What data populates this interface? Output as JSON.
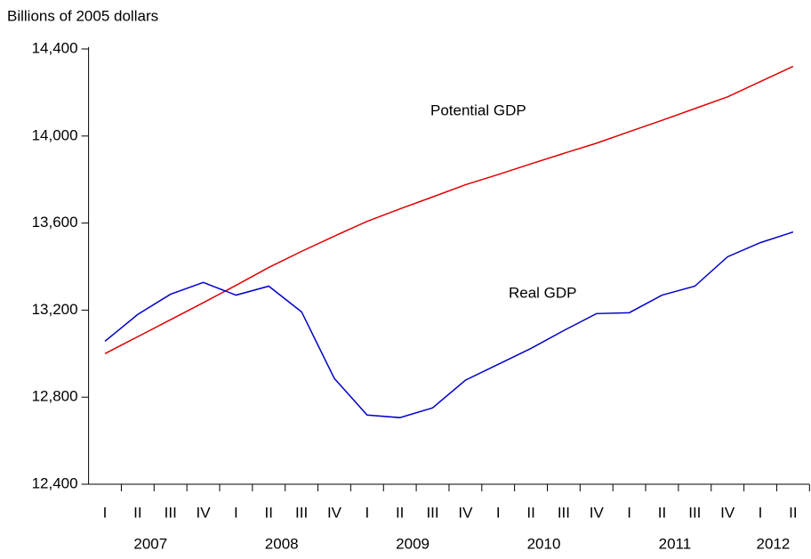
{
  "chart_data": {
    "type": "line",
    "y_label": "Billions of 2005 dollars",
    "categories": [
      "I",
      "II",
      "III",
      "IV",
      "I",
      "II",
      "III",
      "IV",
      "I",
      "II",
      "III",
      "IV",
      "I",
      "II",
      "III",
      "IV",
      "I",
      "II",
      "III",
      "IV",
      "I",
      "II"
    ],
    "years": [
      "2007",
      "2008",
      "2009",
      "2010",
      "2011",
      "2012"
    ],
    "series": [
      {
        "name": "Potential GDP",
        "color": "#e00000",
        "values": [
          13000,
          13078,
          13156,
          13234,
          13314,
          13396,
          13470,
          13540,
          13608,
          13665,
          13720,
          13776,
          13823,
          13872,
          13920,
          13967,
          14020,
          14072,
          14126,
          14180,
          14250,
          14320
        ]
      },
      {
        "name": "Real GDP",
        "color": "#0000cc",
        "values": [
          13057,
          13180,
          13273,
          13327,
          13269,
          13310,
          13192,
          12886,
          12718,
          12706,
          12751,
          12878,
          12951,
          13024,
          13106,
          13184,
          13188,
          13269,
          13310,
          13445,
          13510,
          13559
        ]
      }
    ],
    "ylim": [
      12400,
      14400
    ],
    "yticks": [
      {
        "value": 12400,
        "label": "12,400"
      },
      {
        "value": 12800,
        "label": "12,800"
      },
      {
        "value": 13200,
        "label": "13,200"
      },
      {
        "value": 13600,
        "label": "13,600"
      },
      {
        "value": 14000,
        "label": "14,000"
      },
      {
        "value": 14400,
        "label": "14,400"
      }
    ],
    "grid": false
  }
}
